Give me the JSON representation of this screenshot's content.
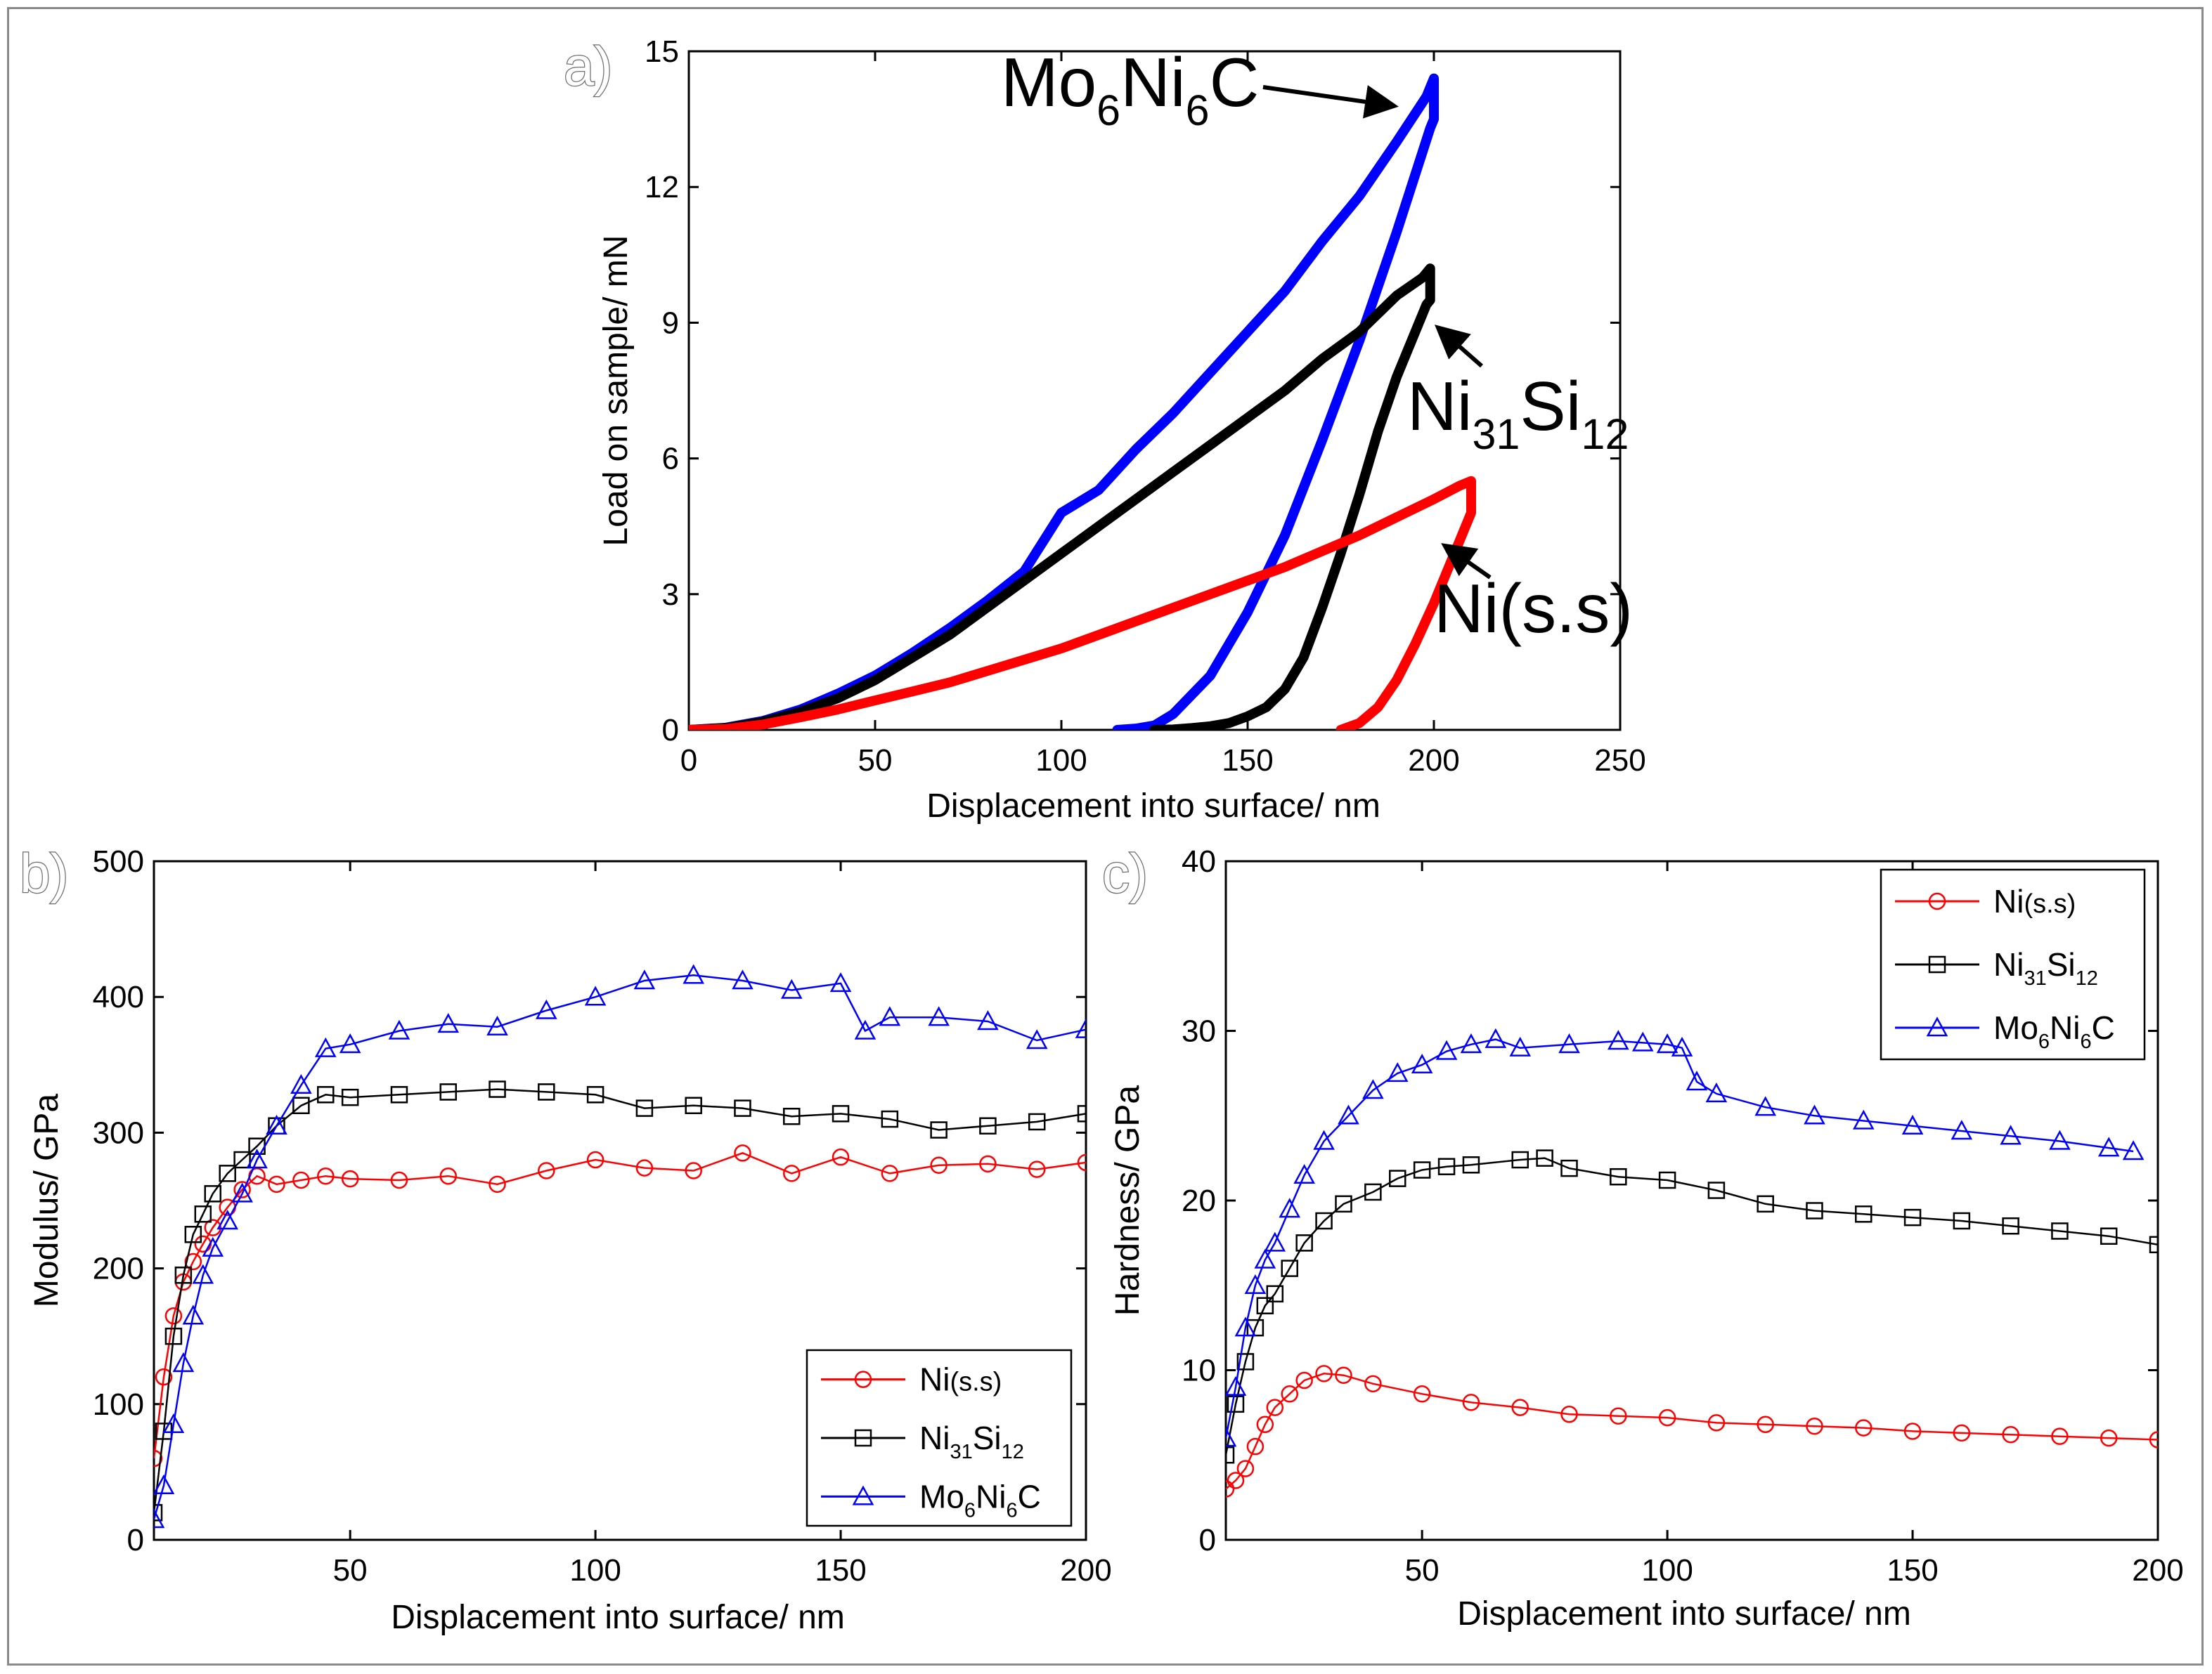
{
  "colors": {
    "ni_ss": "#ff0000",
    "ni31si12": "#000000",
    "mo6ni6c": "#0000ff"
  },
  "chart_data": [
    {
      "panel": "a)",
      "type": "line",
      "xlabel": "Displacement into surface/ nm",
      "ylabel": "Load on sample/ mN",
      "xlim": [
        0,
        250
      ],
      "ylim": [
        0,
        15
      ],
      "xticks": [
        0,
        50,
        100,
        150,
        200,
        250
      ],
      "yticks": [
        0,
        3,
        6,
        9,
        12,
        15
      ],
      "callouts": [
        {
          "series": "Mo6Ni6C",
          "parts": [
            {
              "t": "Mo"
            },
            {
              "t": "6",
              "sub": true
            },
            {
              "t": "Ni"
            },
            {
              "t": "6",
              "sub": true
            },
            {
              "t": "C"
            }
          ]
        },
        {
          "series": "Ni31Si12",
          "parts": [
            {
              "t": "Ni"
            },
            {
              "t": "31",
              "sub": true
            },
            {
              "t": "Si"
            },
            {
              "t": "12",
              "sub": true
            }
          ]
        },
        {
          "series": "Ni(s.s)",
          "parts": [
            {
              "t": "Ni(s.s)"
            }
          ]
        }
      ],
      "series": [
        {
          "name": "Mo6Ni6C",
          "color": "#0000ff",
          "x": [
            0,
            10,
            20,
            30,
            40,
            50,
            60,
            70,
            80,
            90,
            100,
            110,
            120,
            130,
            140,
            150,
            160,
            170,
            180,
            190,
            198,
            200,
            200,
            199,
            190,
            180,
            170,
            160,
            150,
            140,
            130,
            125,
            120,
            115
          ],
          "y": [
            0,
            0.05,
            0.2,
            0.45,
            0.8,
            1.2,
            1.7,
            2.25,
            2.85,
            3.5,
            4.8,
            5.3,
            6.2,
            7.0,
            7.9,
            8.8,
            9.7,
            10.8,
            11.8,
            13.0,
            14.0,
            14.4,
            13.5,
            13.3,
            11.0,
            8.6,
            6.4,
            4.3,
            2.6,
            1.2,
            0.35,
            0.1,
            0.03,
            0
          ]
        },
        {
          "name": "Ni31Si12",
          "color": "#000000",
          "x": [
            0,
            10,
            20,
            30,
            40,
            50,
            60,
            70,
            80,
            90,
            100,
            110,
            120,
            130,
            140,
            150,
            160,
            170,
            180,
            190,
            197,
            199,
            199,
            198,
            190,
            185,
            180,
            175,
            170,
            165,
            160,
            155,
            150,
            145,
            140,
            135,
            130,
            125
          ],
          "y": [
            0,
            0.04,
            0.18,
            0.4,
            0.7,
            1.1,
            1.6,
            2.1,
            2.7,
            3.3,
            3.9,
            4.5,
            5.1,
            5.7,
            6.3,
            6.9,
            7.5,
            8.2,
            8.8,
            9.6,
            10.0,
            10.2,
            9.5,
            9.4,
            7.8,
            6.6,
            5.2,
            3.9,
            2.7,
            1.6,
            0.9,
            0.5,
            0.3,
            0.15,
            0.08,
            0.04,
            0.01,
            0
          ]
        },
        {
          "name": "Ni(s.s)",
          "color": "#ff0000",
          "x": [
            0,
            10,
            20,
            30,
            40,
            50,
            60,
            70,
            80,
            90,
            100,
            110,
            120,
            130,
            140,
            150,
            160,
            170,
            180,
            190,
            200,
            207,
            210,
            210,
            209,
            205,
            200,
            195,
            190,
            185,
            180,
            175
          ],
          "y": [
            0,
            0.02,
            0.12,
            0.28,
            0.45,
            0.65,
            0.85,
            1.05,
            1.3,
            1.55,
            1.8,
            2.1,
            2.4,
            2.7,
            3.0,
            3.3,
            3.6,
            3.95,
            4.3,
            4.7,
            5.1,
            5.4,
            5.5,
            4.8,
            4.6,
            3.8,
            2.8,
            1.9,
            1.1,
            0.5,
            0.15,
            0
          ]
        }
      ]
    },
    {
      "panel": "b)",
      "type": "scatter",
      "xlabel": "Displacement into surface/ nm",
      "ylabel": "Modulus/ GPa",
      "xlim": [
        10,
        200
      ],
      "ylim": [
        0,
        500
      ],
      "xticks": [
        50,
        100,
        150,
        200
      ],
      "xtick_labels": [
        "50",
        "100",
        "150",
        "200"
      ],
      "yticks": [
        0,
        100,
        200,
        300,
        400,
        500
      ],
      "legend_position": "bottom-right",
      "legend": [
        [
          {
            "t": "Ni"
          },
          {
            "t": "(s.s)",
            "small": true
          }
        ],
        [
          {
            "t": "Ni"
          },
          {
            "t": "31",
            "sub": true
          },
          {
            "t": "Si"
          },
          {
            "t": "12",
            "sub": true
          }
        ],
        [
          {
            "t": "Mo"
          },
          {
            "t": "6",
            "sub": true
          },
          {
            "t": "Ni"
          },
          {
            "t": "6",
            "sub": true
          },
          {
            "t": "C"
          }
        ]
      ],
      "series": [
        {
          "name": "Ni(s.s)",
          "color": "#ff0000",
          "marker": "circle",
          "x": [
            10,
            12,
            14,
            16,
            18,
            20,
            22,
            25,
            28,
            31,
            35,
            40,
            45,
            50,
            60,
            70,
            80,
            90,
            100,
            110,
            120,
            130,
            140,
            150,
            160,
            170,
            180,
            190,
            200
          ],
          "y": [
            60,
            120,
            165,
            190,
            205,
            218,
            230,
            245,
            258,
            268,
            262,
            265,
            268,
            266,
            265,
            268,
            262,
            272,
            280,
            274,
            272,
            285,
            270,
            282,
            270,
            276,
            277,
            273,
            278
          ]
        },
        {
          "name": "Ni31Si12",
          "color": "#000000",
          "marker": "square",
          "x": [
            10,
            12,
            14,
            16,
            18,
            20,
            22,
            25,
            28,
            31,
            35,
            40,
            45,
            50,
            60,
            70,
            80,
            90,
            100,
            110,
            120,
            130,
            140,
            150,
            160,
            170,
            180,
            190,
            200
          ],
          "y": [
            20,
            80,
            150,
            195,
            225,
            240,
            255,
            270,
            280,
            290,
            305,
            320,
            328,
            326,
            328,
            330,
            332,
            330,
            328,
            318,
            320,
            318,
            312,
            314,
            310,
            302,
            305,
            308,
            314
          ]
        },
        {
          "name": "Mo6Ni6C",
          "color": "#0000ff",
          "marker": "triangle",
          "x": [
            10,
            12,
            14,
            16,
            18,
            20,
            22,
            25,
            28,
            31,
            35,
            40,
            45,
            50,
            60,
            70,
            80,
            90,
            100,
            110,
            120,
            130,
            140,
            150,
            155,
            160,
            170,
            180,
            190,
            200
          ],
          "y": [
            15,
            40,
            85,
            130,
            165,
            195,
            215,
            235,
            255,
            280,
            305,
            335,
            362,
            365,
            375,
            380,
            378,
            390,
            400,
            412,
            416,
            412,
            405,
            410,
            375,
            385,
            385,
            382,
            368,
            376
          ]
        }
      ]
    },
    {
      "panel": "c)",
      "type": "scatter",
      "xlabel": "Displacement into surface/ nm",
      "ylabel": "Hardness/ GPa",
      "xlim": [
        10,
        200
      ],
      "ylim": [
        0,
        40
      ],
      "xticks": [
        50,
        100,
        150,
        200
      ],
      "xtick_labels": [
        "50",
        "100",
        "150",
        "200"
      ],
      "yticks": [
        0,
        10,
        20,
        30,
        40
      ],
      "legend_position": "top-right",
      "legend": [
        [
          {
            "t": "Ni"
          },
          {
            "t": "(s.s)",
            "small": true
          }
        ],
        [
          {
            "t": "Ni"
          },
          {
            "t": "31",
            "sub": true
          },
          {
            "t": "Si"
          },
          {
            "t": "12",
            "sub": true
          }
        ],
        [
          {
            "t": "Mo"
          },
          {
            "t": "6",
            "sub": true
          },
          {
            "t": "Ni"
          },
          {
            "t": "6",
            "sub": true
          },
          {
            "t": "C"
          }
        ]
      ],
      "series": [
        {
          "name": "Ni(s.s)",
          "color": "#ff0000",
          "marker": "circle",
          "x": [
            10,
            12,
            14,
            16,
            18,
            20,
            23,
            26,
            30,
            34,
            40,
            50,
            60,
            70,
            80,
            90,
            100,
            110,
            120,
            130,
            140,
            150,
            160,
            170,
            180,
            190,
            200
          ],
          "y": [
            3.0,
            3.5,
            4.2,
            5.5,
            6.8,
            7.8,
            8.6,
            9.4,
            9.8,
            9.7,
            9.2,
            8.6,
            8.1,
            7.8,
            7.4,
            7.3,
            7.2,
            6.9,
            6.8,
            6.7,
            6.6,
            6.4,
            6.3,
            6.2,
            6.1,
            6.0,
            5.9
          ]
        },
        {
          "name": "Ni31Si12",
          "color": "#000000",
          "marker": "square",
          "x": [
            10,
            12,
            14,
            16,
            18,
            20,
            23,
            26,
            30,
            34,
            40,
            45,
            50,
            55,
            60,
            70,
            75,
            80,
            90,
            100,
            110,
            120,
            130,
            140,
            150,
            160,
            170,
            180,
            190,
            200
          ],
          "y": [
            5.0,
            8.0,
            10.5,
            12.5,
            13.8,
            14.5,
            16.0,
            17.5,
            18.8,
            19.8,
            20.5,
            21.3,
            21.8,
            22.0,
            22.1,
            22.4,
            22.5,
            21.9,
            21.4,
            21.2,
            20.6,
            19.8,
            19.4,
            19.2,
            19.0,
            18.8,
            18.5,
            18.2,
            17.9,
            17.4
          ]
        },
        {
          "name": "Mo6Ni6C",
          "color": "#0000ff",
          "marker": "triangle",
          "x": [
            10,
            12,
            14,
            16,
            18,
            20,
            23,
            26,
            30,
            35,
            40,
            45,
            50,
            55,
            60,
            65,
            70,
            80,
            90,
            95,
            100,
            103,
            106,
            110,
            120,
            130,
            140,
            150,
            160,
            170,
            180,
            190,
            195
          ],
          "y": [
            6.0,
            9.0,
            12.5,
            15.0,
            16.5,
            17.5,
            19.5,
            21.5,
            23.5,
            25.0,
            26.5,
            27.5,
            28.0,
            28.8,
            29.2,
            29.5,
            29.0,
            29.2,
            29.4,
            29.3,
            29.2,
            29.0,
            27.0,
            26.3,
            25.5,
            25.0,
            24.7,
            24.4,
            24.1,
            23.8,
            23.5,
            23.1,
            22.9
          ]
        }
      ]
    }
  ]
}
